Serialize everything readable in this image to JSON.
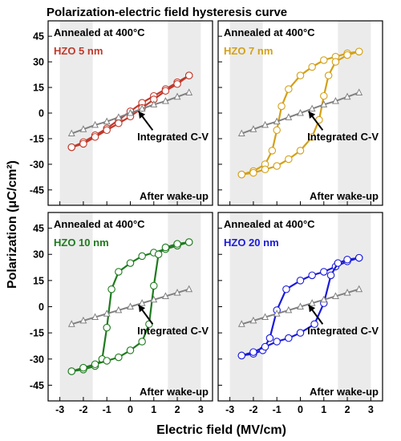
{
  "figure": {
    "title": "Polarization-electric field hysteresis curve",
    "xlabel": "Electric field (MV/cm)",
    "ylabel": "Polarization (μC/cm²)"
  },
  "chart_data": [
    {
      "type": "line",
      "panel": "top-left",
      "anneal_label": "Annealed at 400°C",
      "sample_label": "HZO 5 nm",
      "sample_color": "#c0392b",
      "ann_cv": "Integrated C-V",
      "ann_wake": "After wake-up",
      "xlim": [
        -3.5,
        3.5
      ],
      "ylim": [
        -54,
        54
      ],
      "xticks": [
        -3,
        -2,
        -1,
        0,
        1,
        2,
        3
      ],
      "yticks": [
        45,
        30,
        15,
        0,
        -15,
        -30,
        -45
      ],
      "series": [
        {
          "role": "upper_branch",
          "color": "#c0392b",
          "x": [
            -2.5,
            -2,
            -1.5,
            -1,
            -0.5,
            0,
            0.5,
            1,
            1.5,
            2,
            2.5
          ],
          "y": [
            -20,
            -17,
            -13,
            -9,
            -4,
            1,
            6,
            10,
            14,
            18,
            22
          ]
        },
        {
          "role": "lower_branch",
          "color": "#c0392b",
          "x": [
            2.5,
            2,
            1.5,
            1,
            0.5,
            0,
            -0.5,
            -1,
            -1.5,
            -2,
            -2.5
          ],
          "y": [
            22,
            17,
            13,
            8,
            3,
            -2,
            -6,
            -10,
            -14,
            -18,
            -20
          ]
        },
        {
          "role": "integrated_cv",
          "color": "#808080",
          "x": [
            -2.5,
            -2,
            -1.5,
            -1,
            -0.5,
            0,
            0.5,
            1,
            1.5,
            2,
            2.5
          ],
          "y": [
            -12,
            -9.5,
            -7,
            -5,
            -2.5,
            0,
            2.5,
            5,
            7,
            9.5,
            12
          ]
        }
      ]
    },
    {
      "type": "line",
      "panel": "top-right",
      "anneal_label": "Annealed at 400°C",
      "sample_label": "HZO 7 nm",
      "sample_color": "#d4a017",
      "ann_cv": "Integrated C-V",
      "ann_wake": "After wake-up",
      "xlim": [
        -3.5,
        3.5
      ],
      "ylim": [
        -54,
        54
      ],
      "xticks": [
        -3,
        -2,
        -1,
        0,
        1,
        2,
        3
      ],
      "yticks": [
        45,
        30,
        15,
        0,
        -15,
        -30,
        -45
      ],
      "series": [
        {
          "role": "upper_branch",
          "color": "#d4a017",
          "x": [
            -2.5,
            -2,
            -1.5,
            -1.2,
            -1,
            -0.8,
            -0.5,
            0,
            0.5,
            1,
            1.5,
            2,
            2.5
          ],
          "y": [
            -36,
            -34,
            -30,
            -22,
            -10,
            4,
            14,
            22,
            27,
            31,
            33,
            35,
            36
          ]
        },
        {
          "role": "lower_branch",
          "color": "#d4a017",
          "x": [
            2.5,
            2,
            1.5,
            1.2,
            1,
            0.8,
            0.5,
            0,
            -0.5,
            -1,
            -1.5,
            -2,
            -2.5
          ],
          "y": [
            36,
            34,
            30,
            22,
            10,
            -4,
            -14,
            -22,
            -27,
            -31,
            -33,
            -35,
            -36
          ]
        },
        {
          "role": "integrated_cv",
          "color": "#808080",
          "x": [
            -2.5,
            -2,
            -1.5,
            -1,
            -0.5,
            0,
            0.5,
            1,
            1.5,
            2,
            2.5
          ],
          "y": [
            -12,
            -9.5,
            -7,
            -5,
            -2.5,
            0,
            2.5,
            5,
            7,
            9.5,
            12
          ]
        }
      ]
    },
    {
      "type": "line",
      "panel": "bottom-left",
      "anneal_label": "Annealed at 400°C",
      "sample_label": "HZO 10 nm",
      "sample_color": "#1e7b1e",
      "ann_cv": "Integrated C-V",
      "ann_wake": "After wake-up",
      "xlim": [
        -3.5,
        3.5
      ],
      "ylim": [
        -54,
        54
      ],
      "xticks": [
        -3,
        -2,
        -1,
        0,
        1,
        2,
        3
      ],
      "yticks": [
        45,
        30,
        15,
        0,
        -15,
        -30,
        -45
      ],
      "series": [
        {
          "role": "upper_branch",
          "color": "#1e7b1e",
          "x": [
            -2.5,
            -2,
            -1.5,
            -1.2,
            -1,
            -0.8,
            -0.5,
            0,
            0.5,
            1,
            1.5,
            2,
            2.5
          ],
          "y": [
            -37,
            -36,
            -34,
            -30,
            -12,
            10,
            20,
            25,
            29,
            31,
            33,
            35,
            37
          ]
        },
        {
          "role": "lower_branch",
          "color": "#1e7b1e",
          "x": [
            2.5,
            2,
            1.5,
            1.2,
            1,
            0.8,
            0.5,
            0,
            -0.5,
            -1,
            -1.5,
            -2,
            -2.5
          ],
          "y": [
            37,
            36,
            34,
            30,
            12,
            -10,
            -20,
            -25,
            -29,
            -31,
            -33,
            -35,
            -37
          ]
        },
        {
          "role": "integrated_cv",
          "color": "#808080",
          "x": [
            -2.5,
            -2,
            -1.5,
            -1,
            -0.5,
            0,
            0.5,
            1,
            1.5,
            2,
            2.5
          ],
          "y": [
            -10,
            -8,
            -6,
            -4,
            -2,
            0,
            2,
            4,
            6,
            8,
            10
          ]
        }
      ]
    },
    {
      "type": "line",
      "panel": "bottom-right",
      "anneal_label": "Annealed at 400°C",
      "sample_label": "HZO 20 nm",
      "sample_color": "#1a1adb",
      "ann_cv": "Integrated C-V",
      "ann_wake": "After wake-up",
      "xlim": [
        -3.5,
        3.5
      ],
      "ylim": [
        -54,
        54
      ],
      "xticks": [
        -3,
        -2,
        -1,
        0,
        1,
        2,
        3
      ],
      "yticks": [
        45,
        30,
        15,
        0,
        -15,
        -30,
        -45
      ],
      "series": [
        {
          "role": "upper_branch",
          "color": "#1a1adb",
          "x": [
            -2.5,
            -2,
            -1.6,
            -1.3,
            -1,
            -0.6,
            0,
            0.5,
            1,
            1.5,
            2,
            2.5
          ],
          "y": [
            -28,
            -27,
            -25,
            -18,
            -2,
            10,
            15,
            18,
            20,
            23,
            26,
            28
          ]
        },
        {
          "role": "lower_branch",
          "color": "#1a1adb",
          "x": [
            2.5,
            2,
            1.6,
            1.3,
            1,
            0.6,
            0,
            -0.5,
            -1,
            -1.5,
            -2,
            -2.5
          ],
          "y": [
            28,
            27,
            25,
            18,
            2,
            -10,
            -15,
            -18,
            -20,
            -23,
            -26,
            -28
          ]
        },
        {
          "role": "integrated_cv",
          "color": "#808080",
          "x": [
            -2.5,
            -2,
            -1.5,
            -1,
            -0.5,
            0,
            0.5,
            1,
            1.5,
            2,
            2.5
          ],
          "y": [
            -10,
            -8,
            -6,
            -4,
            -2,
            0,
            2,
            4,
            6,
            8,
            10
          ]
        }
      ]
    }
  ]
}
